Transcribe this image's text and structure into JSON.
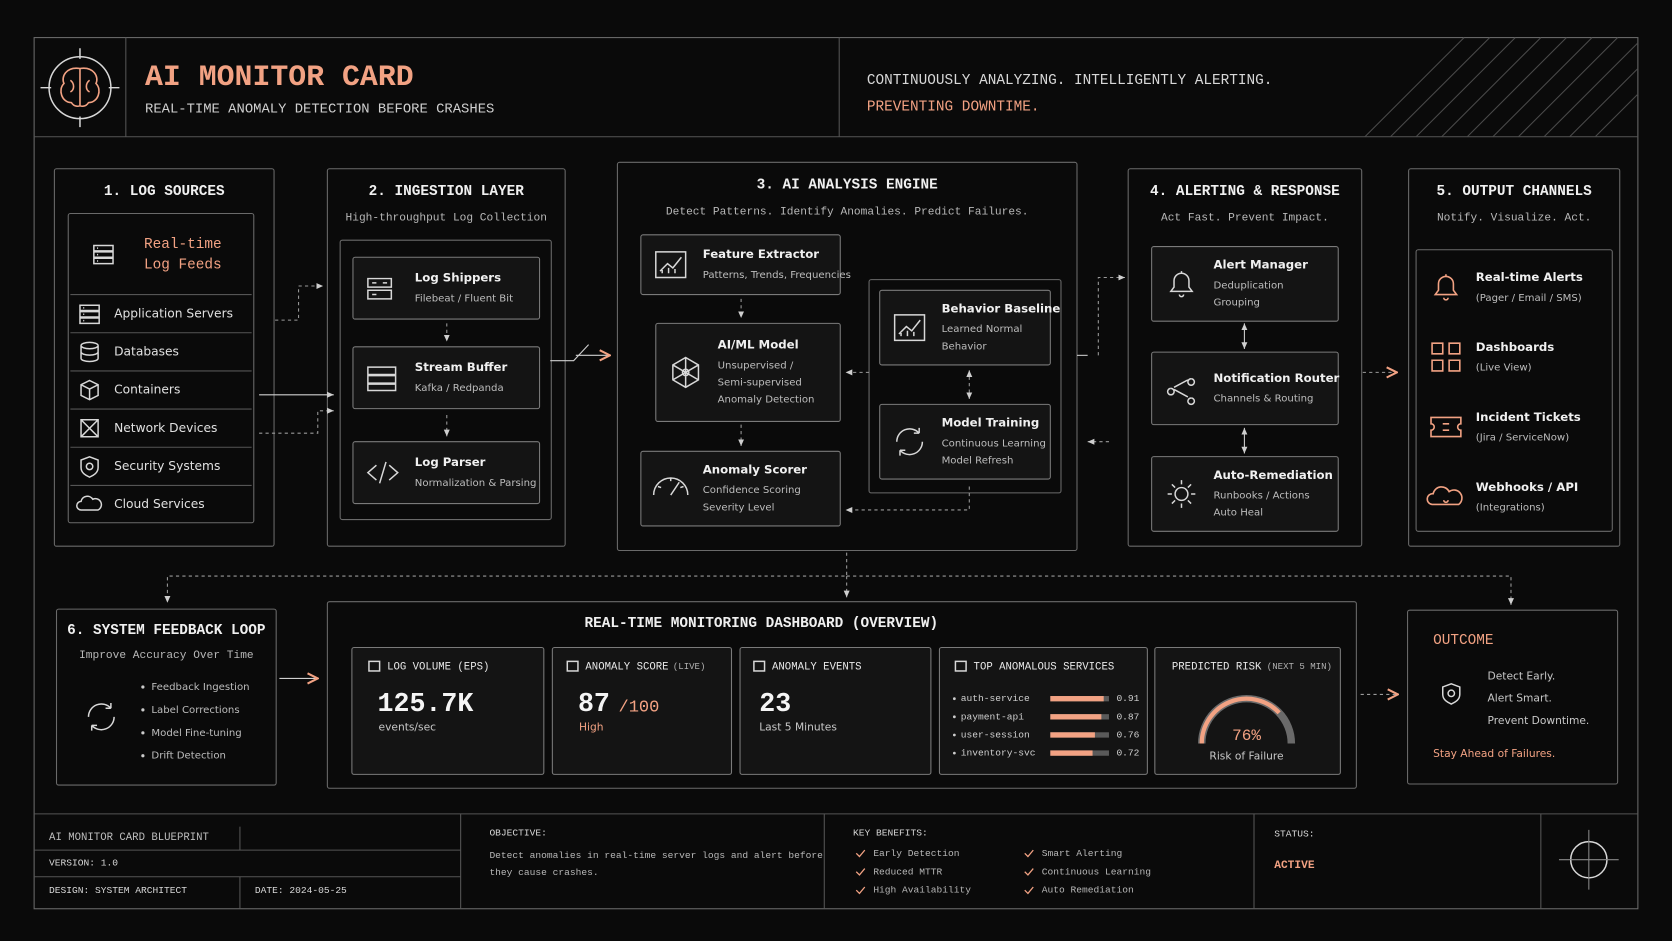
{
  "header": {
    "title": "AI MONITOR CARD",
    "subtitle": "REAL-TIME ANOMALY DETECTION BEFORE CRASHES",
    "tagline": "CONTINUOUSLY ANALYZING. INTELLIGENTLY ALERTING.",
    "tagline_accent": "PREVENTING DOWNTIME."
  },
  "sections": [
    {
      "title": "1. LOG SOURCES",
      "feature": [
        "Real-time",
        "Log Feeds"
      ],
      "items": [
        "Application Servers",
        "Databases",
        "Containers",
        "Network Devices",
        "Security Systems",
        "Cloud Services"
      ]
    },
    {
      "title": "2. INGESTION LAYER",
      "subtitle": "High-throughput Log Collection",
      "nodes": [
        {
          "label": "Log Shippers",
          "detail": [
            "Filebeat / Fluent Bit"
          ]
        },
        {
          "label": "Stream Buffer",
          "detail": [
            "Kafka / Redpanda"
          ]
        },
        {
          "label": "Log Parser",
          "detail": [
            "Normalization & Parsing"
          ]
        }
      ]
    },
    {
      "title": "3. AI ANALYSIS ENGINE",
      "subtitle": "Detect Patterns. Identify Anomalies. Predict Failures.",
      "nodes": [
        {
          "label": "Feature Extractor",
          "detail": [
            "Patterns, Trends, Frequencies"
          ]
        },
        {
          "label": "AI/ML Model",
          "detail": [
            "Unsupervised /",
            "Semi-supervised",
            "Anomaly Detection"
          ]
        },
        {
          "label": "Anomaly Scorer",
          "detail": [
            "Confidence Scoring",
            "Severity Level"
          ]
        },
        {
          "label": "Behavior Baseline",
          "detail": [
            "Learned Normal",
            "Behavior"
          ]
        },
        {
          "label": "Model Training",
          "detail": [
            "Continuous Learning",
            "Model Refresh"
          ]
        }
      ]
    },
    {
      "title": "4. ALERTING & RESPONSE",
      "subtitle": "Act Fast. Prevent Impact.",
      "nodes": [
        {
          "label": "Alert Manager",
          "detail": [
            "Deduplication",
            "Grouping"
          ]
        },
        {
          "label": "Notification Router",
          "detail": [
            "Channels & Routing"
          ]
        },
        {
          "label": "Auto-Remediation",
          "detail": [
            "Runbooks / Actions",
            "Auto Heal"
          ]
        }
      ]
    },
    {
      "title": "5. OUTPUT CHANNELS",
      "subtitle": "Notify. Visualize. Act.",
      "nodes": [
        {
          "label": "Real-time Alerts",
          "detail": [
            "(Pager / Email / SMS)"
          ]
        },
        {
          "label": "Dashboards",
          "detail": [
            "(Live View)"
          ]
        },
        {
          "label": "Incident Tickets",
          "detail": [
            "(Jira / ServiceNow)"
          ]
        },
        {
          "label": "Webhooks / API",
          "detail": [
            "(Integrations)"
          ]
        }
      ]
    }
  ],
  "feedback": {
    "title": "6. SYSTEM FEEDBACK LOOP",
    "subtitle": "Improve Accuracy Over Time",
    "items": [
      "Feedback Ingestion",
      "Label Corrections",
      "Model Fine-tuning",
      "Drift Detection"
    ]
  },
  "dashboard": {
    "title": "REAL-TIME MONITORING DASHBOARD (OVERVIEW)",
    "log_volume": {
      "title": "LOG VOLUME (EPS)",
      "value": "125.7K",
      "unit": "events/sec"
    },
    "anomaly_score": {
      "title": "ANOMALY SCORE",
      "title_note": "(LIVE)",
      "value": "87",
      "max": "/100",
      "level": "High"
    },
    "anomaly_events": {
      "title": "ANOMALY EVENTS",
      "value": "23",
      "note": "Last 5 Minutes"
    },
    "top_services": {
      "title": "TOP ANOMALOUS SERVICES",
      "services": [
        {
          "name": "auth-service",
          "score": 0.91
        },
        {
          "name": "payment-api",
          "score": 0.87
        },
        {
          "name": "user-session",
          "score": 0.76
        },
        {
          "name": "inventory-svc",
          "score": 0.72
        }
      ]
    },
    "predicted_risk": {
      "title": "PREDICTED RISK",
      "title_note": "(NEXT 5 MIN)",
      "risk": {
        "value": 76,
        "label": "76%"
      },
      "note": "Risk of Failure"
    }
  },
  "outcome": {
    "title": "OUTCOME",
    "lines": [
      "Detect Early.",
      "Alert Smart.",
      "Prevent Downtime."
    ],
    "accent": "Stay Ahead of Failures."
  },
  "footer": {
    "blueprint": "AI MONITOR CARD BLUEPRINT",
    "version": "VERSION: 1.0",
    "design": "DESIGN: SYSTEM ARCHITECT",
    "date": "DATE: 2024-05-25",
    "objective_label": "OBJECTIVE:",
    "objective": [
      "Detect anomalies in real-time server logs and alert before",
      "they cause crashes."
    ],
    "benefits_label": "KEY BENEFITS:",
    "benefits": [
      "Early Detection",
      "Reduced MTTR",
      "High Availability",
      "Smart Alerting",
      "Continuous Learning",
      "Auto Remediation"
    ],
    "status_label": "STATUS:",
    "status": "ACTIVE"
  }
}
